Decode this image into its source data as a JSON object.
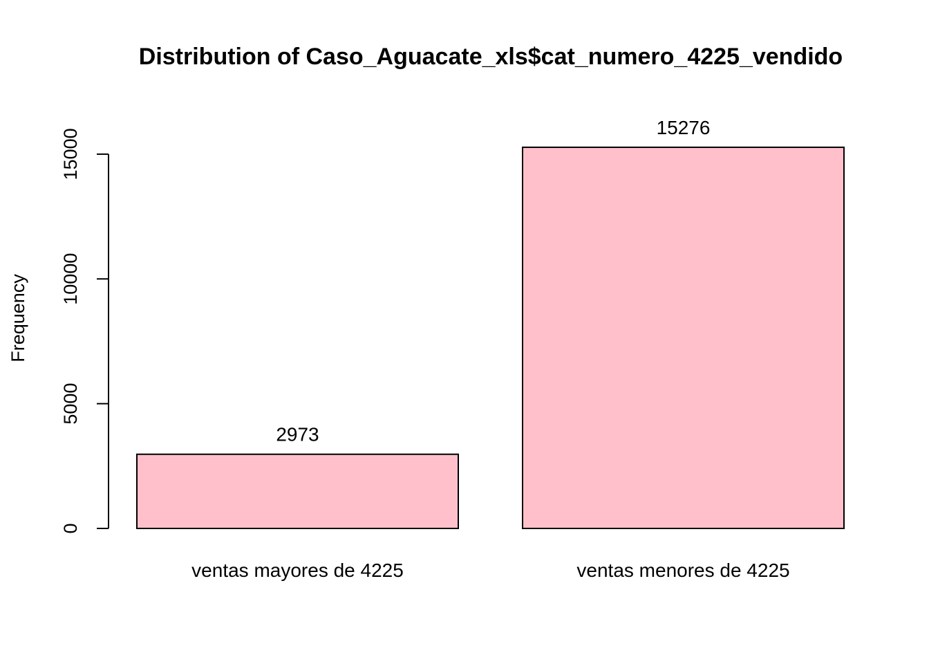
{
  "chart_data": {
    "type": "bar",
    "title": "Distribution of Caso_Aguacate_xls$cat_numero_4225_vendido",
    "xlabel": "",
    "ylabel": "Frequency",
    "categories": [
      "ventas mayores de 4225",
      "ventas menores de 4225"
    ],
    "values": [
      2973,
      15276
    ],
    "data_labels": [
      "2973",
      "15276"
    ],
    "yticks": [
      0,
      5000,
      10000,
      15000
    ],
    "ytick_labels": [
      "0",
      "5000",
      "10000",
      "15000"
    ],
    "ylim": [
      0,
      15276
    ],
    "bar_color": "#FFC0CB",
    "grid": false,
    "legend": "none"
  }
}
